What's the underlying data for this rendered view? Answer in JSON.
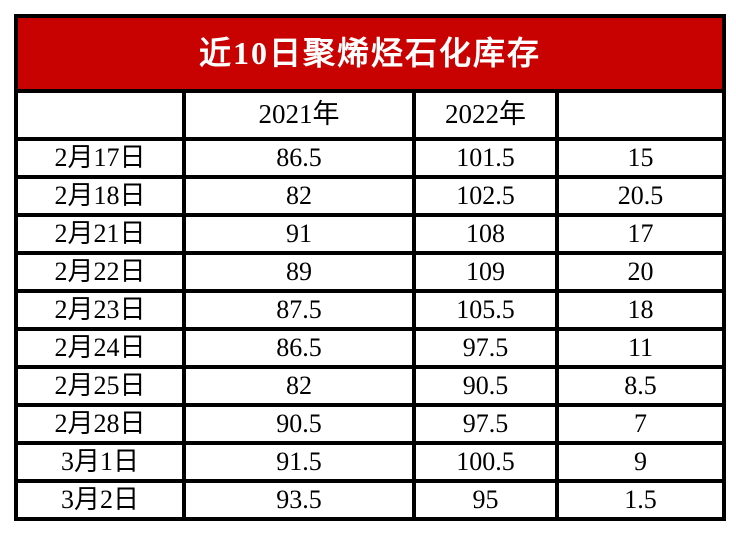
{
  "colors": {
    "title_bg": "#c80101",
    "title_text": "#ffffff",
    "border": "#000000",
    "cell_bg": "#ffffff",
    "cell_text": "#000000"
  },
  "chart_data": {
    "type": "table",
    "title": "近10日聚烯烃石化库存",
    "columns": [
      "",
      "2021年",
      "2022年",
      ""
    ],
    "categories": [
      "2月17日",
      "2月18日",
      "2月21日",
      "2月22日",
      "2月23日",
      "2月24日",
      "2月25日",
      "2月28日",
      "3月1日",
      "3月2日"
    ],
    "series": [
      {
        "name": "2021年",
        "values": [
          86.5,
          82,
          91,
          89,
          87.5,
          86.5,
          82,
          90.5,
          91.5,
          93.5
        ]
      },
      {
        "name": "2022年",
        "values": [
          101.5,
          102.5,
          108,
          109,
          105.5,
          97.5,
          90.5,
          97.5,
          100.5,
          95
        ]
      },
      {
        "name": "",
        "values": [
          15,
          20.5,
          17,
          20,
          18,
          11,
          8.5,
          7,
          9,
          1.5
        ]
      }
    ],
    "legend_position": "none",
    "grid": "full-borders"
  }
}
